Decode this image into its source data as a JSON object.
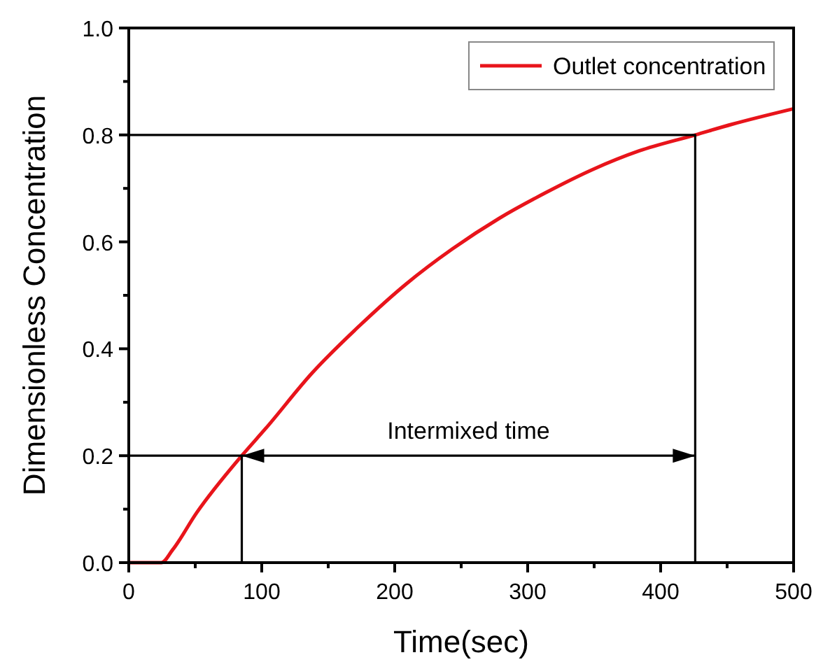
{
  "chart_data": {
    "type": "line",
    "xlabel": "Time(sec)",
    "ylabel": "Dimensionless Concentration",
    "xlim": [
      0,
      500
    ],
    "ylim": [
      0,
      1
    ],
    "xticks": [
      0,
      {
        "value": 50,
        "label": null
      },
      100,
      {
        "value": 150,
        "label": null
      },
      200,
      {
        "value": 250,
        "label": null
      },
      300,
      {
        "value": 350,
        "label": null
      },
      400,
      {
        "value": 450,
        "label": null
      },
      500
    ],
    "yticks": [
      {
        "value": 0,
        "label": "0.0"
      },
      {
        "value": 0.1,
        "label": null
      },
      {
        "value": 0.2,
        "label": "0.2"
      },
      {
        "value": 0.3,
        "label": null
      },
      {
        "value": 0.4,
        "label": "0.4"
      },
      {
        "value": 0.5,
        "label": null
      },
      {
        "value": 0.6,
        "label": "0.6"
      },
      {
        "value": 0.7,
        "label": null
      },
      {
        "value": 0.8,
        "label": "0.8"
      },
      {
        "value": 0.9,
        "label": null
      },
      {
        "value": 1,
        "label": "1.0"
      }
    ],
    "series": [
      {
        "name": "Outlet concentration",
        "color": "#e8141b",
        "x": [
          0,
          24.5,
          33,
          51,
          85,
          103,
          138,
          173.5,
          208.5,
          243.5,
          278.6,
          313.6,
          348.6,
          383.7,
          426,
          453.8,
          500
        ],
        "values": [
          0,
          0,
          0.024,
          0.093,
          0.2,
          0.251,
          0.355,
          0.443,
          0.521,
          0.587,
          0.644,
          0.692,
          0.735,
          0.77,
          0.8,
          0.82,
          0.849
        ]
      },
      {
        "color": "#000000",
        "x": [
          0,
          85,
          85
        ],
        "values": [
          0.2,
          0.2,
          0
        ]
      },
      {
        "color": "#000000",
        "x": [
          0,
          426,
          426
        ],
        "values": [
          0.8,
          0.8,
          0
        ]
      }
    ],
    "annotations": [
      "Intermixed time"
    ],
    "legend": "top right",
    "grid": false
  }
}
